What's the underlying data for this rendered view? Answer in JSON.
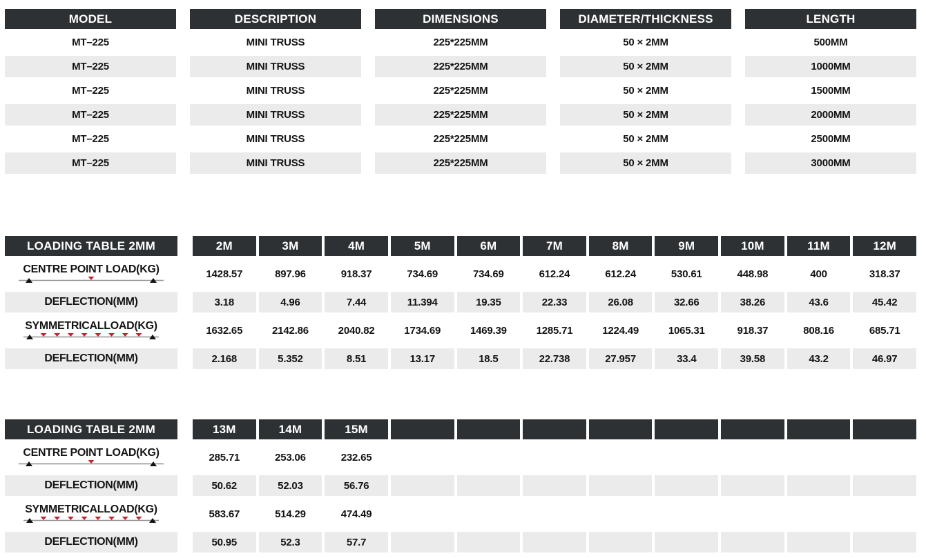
{
  "colors": {
    "header_bg": "#2e3133",
    "header_text": "#ffffff",
    "row_alt_bg": "#ebebeb",
    "text": "#141414",
    "load_marker_red": "#c1272d",
    "support_marker_black": "#141414",
    "beam_line_gray": "#8f8f8f"
  },
  "spec_table": {
    "headers": [
      "MODEL",
      "DESCRIPTION",
      "DIMENSIONS",
      "DIAMETER/THICKNESS",
      "LENGTH"
    ],
    "rows": [
      [
        "MT–225",
        "MINI TRUSS",
        "225*225MM",
        "50 × 2MM",
        "500MM"
      ],
      [
        "MT–225",
        "MINI TRUSS",
        "225*225MM",
        "50 × 2MM",
        "1000MM"
      ],
      [
        "MT–225",
        "MINI TRUSS",
        "225*225MM",
        "50 × 2MM",
        "1500MM"
      ],
      [
        "MT–225",
        "MINI TRUSS",
        "225*225MM",
        "50 × 2MM",
        "2000MM"
      ],
      [
        "MT–225",
        "MINI TRUSS",
        "225*225MM",
        "50 × 2MM",
        "2500MM"
      ],
      [
        "MT–225",
        "MINI TRUSS",
        "225*225MM",
        "50 × 2MM",
        "3000MM"
      ]
    ]
  },
  "loading_tables": [
    {
      "title": "LOADING TABLE 2MM",
      "columns": [
        "2M",
        "3M",
        "4M",
        "5M",
        "6M",
        "7M",
        "8M",
        "9M",
        "10M",
        "11M",
        "12M"
      ],
      "rows": [
        {
          "label": "CENTRE POINT LOAD(KG)",
          "diagram": "centre-point-load",
          "values": [
            "1428.57",
            "897.96",
            "918.37",
            "734.69",
            "734.69",
            "612.24",
            "612.24",
            "530.61",
            "448.98",
            "400",
            "318.37"
          ]
        },
        {
          "label": "DEFLECTION(MM)",
          "diagram": null,
          "values": [
            "3.18",
            "4.96",
            "7.44",
            "11.394",
            "19.35",
            "22.33",
            "26.08",
            "32.66",
            "38.26",
            "43.6",
            "45.42"
          ]
        },
        {
          "label": "SYMMETRICALLOAD(KG)",
          "diagram": "symmetrical-load",
          "values": [
            "1632.65",
            "2142.86",
            "2040.82",
            "1734.69",
            "1469.39",
            "1285.71",
            "1224.49",
            "1065.31",
            "918.37",
            "808.16",
            "685.71"
          ]
        },
        {
          "label": "DEFLECTION(MM)",
          "diagram": null,
          "values": [
            "2.168",
            "5.352",
            "8.51",
            "13.17",
            "18.5",
            "22.738",
            "27.957",
            "33.4",
            "39.58",
            "43.2",
            "46.97"
          ]
        }
      ]
    },
    {
      "title": "LOADING TABLE 2MM",
      "columns": [
        "13M",
        "14M",
        "15M",
        "",
        "",
        "",
        "",
        "",
        "",
        "",
        ""
      ],
      "rows": [
        {
          "label": "CENTRE POINT LOAD(KG)",
          "diagram": "centre-point-load",
          "values": [
            "285.71",
            "253.06",
            "232.65",
            "",
            "",
            "",
            "",
            "",
            "",
            "",
            ""
          ]
        },
        {
          "label": "DEFLECTION(MM)",
          "diagram": null,
          "values": [
            "50.62",
            "52.03",
            "56.76",
            "",
            "",
            "",
            "",
            "",
            "",
            "",
            ""
          ]
        },
        {
          "label": "SYMMETRICALLOAD(KG)",
          "diagram": "symmetrical-load",
          "values": [
            "583.67",
            "514.29",
            "474.49",
            "",
            "",
            "",
            "",
            "",
            "",
            "",
            ""
          ]
        },
        {
          "label": "DEFLECTION(MM)",
          "diagram": null,
          "values": [
            "50.95",
            "52.3",
            "57.7",
            "",
            "",
            "",
            "",
            "",
            "",
            "",
            ""
          ]
        }
      ]
    }
  ]
}
